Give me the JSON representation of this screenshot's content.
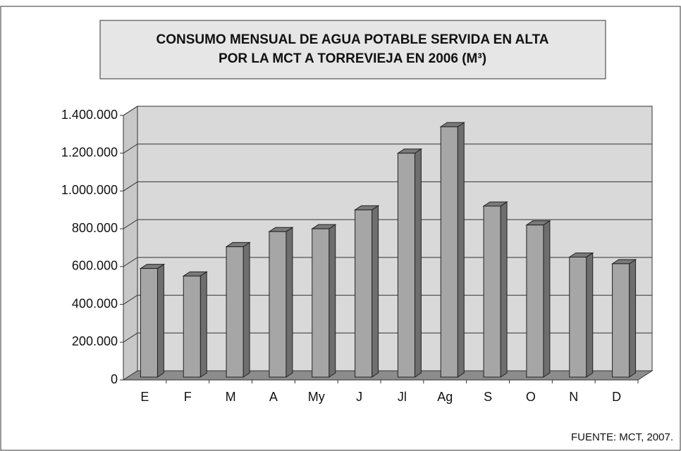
{
  "chart_data": {
    "type": "bar3d",
    "title": [
      "CONSUMO MENSUAL DE AGUA POTABLE SERVIDA EN ALTA",
      "POR LA MCT A TORREVIEJA EN 2006 (M³)"
    ],
    "categories": [
      "E",
      "F",
      "M",
      "A",
      "My",
      "J",
      "Jl",
      "Ag",
      "S",
      "O",
      "N",
      "D"
    ],
    "values": [
      575000,
      535000,
      690000,
      770000,
      785000,
      885000,
      1185000,
      1325000,
      905000,
      805000,
      635000,
      600000
    ],
    "color": "#a6a6a6",
    "ylim": [
      0,
      1400000
    ],
    "yticks": [
      0,
      {
        "value": 200000,
        "label": "200.000"
      },
      {
        "value": 400000,
        "label": "400.000"
      },
      {
        "value": 600000,
        "label": "600.000"
      },
      {
        "value": 800000,
        "label": "800.000"
      },
      {
        "value": 1000000,
        "label": "1.000.000"
      },
      {
        "value": 1200000,
        "label": "1.200.000"
      },
      {
        "value": 1400000,
        "label": "1.400.000"
      }
    ],
    "grid": true,
    "source": "FUENTE: MCT, 2007."
  }
}
